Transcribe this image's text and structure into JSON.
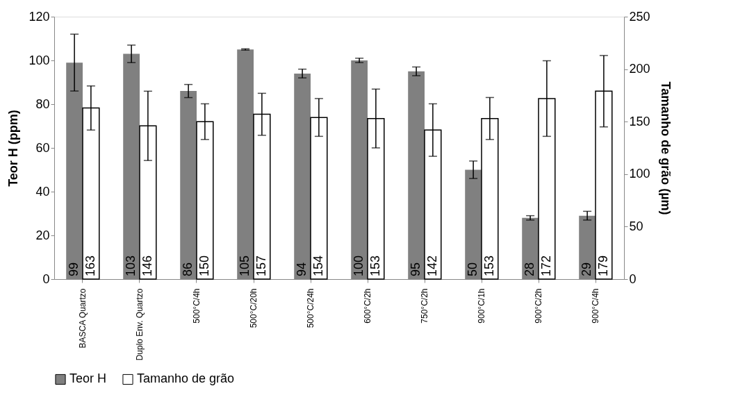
{
  "chart_data": {
    "type": "bar",
    "ylabel": "Teor H (ppm)",
    "y2label": "Tamanho de grão (µm)",
    "categories": [
      "BASCA Quartzo",
      "Duplo Env. Quartzo",
      "500°C/4h",
      "500°C/20h",
      "500°C/24h",
      "600°C/2h",
      "750°C/2h",
      "900°C/1h",
      "900°C/2h",
      "900°C/4h"
    ],
    "series": [
      {
        "name": "Teor H",
        "color": "#808080",
        "values": [
          99,
          103,
          86,
          105,
          94,
          100,
          95,
          50,
          28,
          29
        ],
        "errors": [
          13,
          4,
          3,
          0.3,
          2,
          1,
          2,
          4,
          1,
          2
        ]
      },
      {
        "name": "Tamanho de grão",
        "color": "#ffffff",
        "axis": "y2",
        "values": [
          163,
          146,
          150,
          157,
          154,
          153,
          142,
          153,
          172,
          179
        ],
        "errors": [
          21,
          33,
          17,
          20,
          18,
          28,
          25,
          20,
          36,
          34
        ]
      }
    ],
    "ylim": [
      0,
      120
    ],
    "yticks": [
      0,
      20,
      40,
      60,
      80,
      100,
      120
    ],
    "y2lim": [
      0,
      250
    ],
    "y2ticks": [
      0,
      50,
      100,
      150,
      200,
      250
    ],
    "data_labels": true,
    "grid": false,
    "legend": "bottom"
  }
}
